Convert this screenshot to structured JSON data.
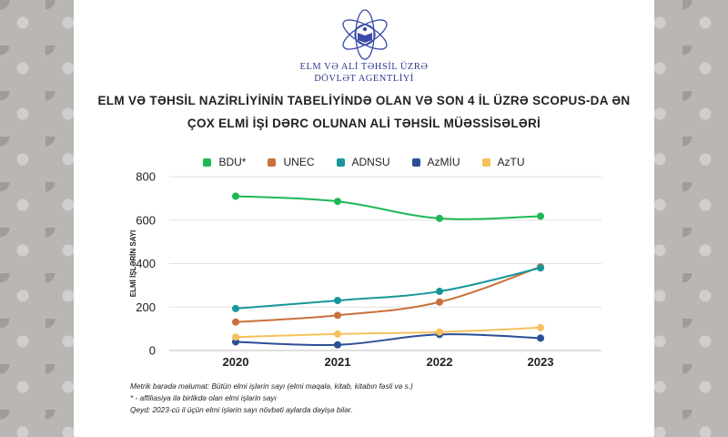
{
  "agency": {
    "line1": "ELM VƏ ALİ TƏHSİL ÜZRƏ",
    "line2": "DÖVLƏT AGENTLİYİ"
  },
  "title": {
    "line1": "ELM VƏ TƏHSİL NAZİRLİYİNİN TABELİYİNDƏ OLAN VƏ SON 4 İL ÜZRƏ SCOPUS-DA ƏN",
    "line2": "ÇOX ELMİ İŞİ DƏRC OLUNAN ALİ TƏHSİL MÜƏSSİSƏLƏRİ"
  },
  "notes": {
    "line1": "Metrik barədə məlumat: Bütün elmi işlərin sayı (elmi məqalə, kitab, kitabın fəsli və s.)",
    "line2": "* - affiliasiya ilə birlikdə olan elmi işlərin sayı",
    "line3": "Qeyd: 2023-cü il üçün elmi işlərin sayı növbəti aylarda dəyişə bilər."
  },
  "chart_data": {
    "type": "line",
    "ylabel": "ELMİ İŞLƏRİN SAYI",
    "xlabel": "",
    "x": [
      "2020",
      "2021",
      "2022",
      "2023"
    ],
    "ylim": [
      0,
      800
    ],
    "yticks": [
      0,
      200,
      400,
      600,
      800
    ],
    "grid": true,
    "legend_position": "top",
    "series": [
      {
        "name": "BDU*",
        "color": "#1db954",
        "values": [
          710,
          686,
          608,
          618
        ]
      },
      {
        "name": "UNEC",
        "color": "#c8713a",
        "values": [
          131,
          162,
          223,
          385
        ]
      },
      {
        "name": "ADNSU",
        "color": "#17979b",
        "values": [
          193,
          230,
          272,
          380
        ]
      },
      {
        "name": "AzMİU",
        "color": "#2b4f96",
        "values": [
          40,
          26,
          74,
          57
        ]
      },
      {
        "name": "AzTU",
        "color": "#f5c15b",
        "values": [
          62,
          76,
          85,
          105
        ]
      }
    ]
  }
}
